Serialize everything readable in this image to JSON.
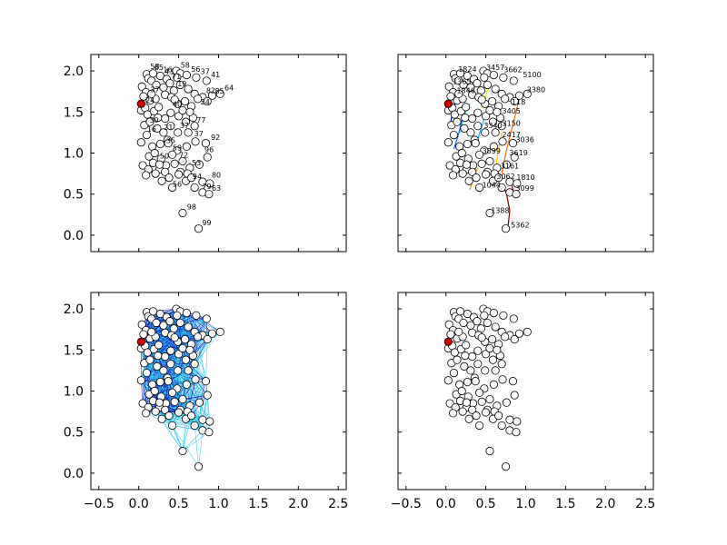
{
  "chart_data": {
    "type": "scatter",
    "xlim": [
      -0.6,
      2.6
    ],
    "ylim": [
      -0.2,
      2.2
    ],
    "x_ticks": [
      "−0.5",
      "0.0",
      "0.5",
      "1.0",
      "1.5",
      "2.0",
      "2.5"
    ],
    "x_tick_values": [
      -0.5,
      0.0,
      0.5,
      1.0,
      1.5,
      2.0,
      2.5
    ],
    "y_ticks": [
      "0.0",
      "0.5",
      "1.0",
      "1.5",
      "2.0"
    ],
    "y_tick_values": [
      0.0,
      0.5,
      1.0,
      1.5,
      2.0
    ],
    "grid": false,
    "colors": {
      "point_fill": "#ffffff",
      "point_edge": "#000000",
      "highlight": "#d40000",
      "edge_dark": "#1010c8",
      "edge_light": "#2ec8ee"
    },
    "highlight_point": {
      "x": 0.03,
      "y": 1.6
    },
    "points": [
      [
        0.1,
        1.96
      ],
      [
        0.12,
        1.91
      ],
      [
        0.18,
        1.97
      ],
      [
        0.27,
        1.94
      ],
      [
        0.35,
        1.9
      ],
      [
        0.47,
        2.0
      ],
      [
        0.52,
        1.97
      ],
      [
        0.6,
        1.95
      ],
      [
        0.72,
        1.92
      ],
      [
        0.85,
        1.88
      ],
      [
        0.04,
        1.81
      ],
      [
        0.09,
        1.74
      ],
      [
        0.16,
        1.88
      ],
      [
        0.22,
        1.83
      ],
      [
        0.31,
        1.8
      ],
      [
        0.39,
        1.85
      ],
      [
        0.44,
        1.76
      ],
      [
        0.52,
        1.83
      ],
      [
        0.62,
        1.78
      ],
      [
        0.7,
        1.72
      ],
      [
        0.8,
        1.68
      ],
      [
        0.92,
        1.7
      ],
      [
        1.02,
        1.72
      ],
      [
        0.06,
        1.69
      ],
      [
        0.14,
        1.64
      ],
      [
        0.21,
        1.66
      ],
      [
        0.33,
        1.71
      ],
      [
        0.41,
        1.68
      ],
      [
        0.49,
        1.6
      ],
      [
        0.58,
        1.63
      ],
      [
        0.66,
        1.57
      ],
      [
        0.74,
        1.66
      ],
      [
        0.86,
        1.63
      ],
      [
        0.03,
        1.52
      ],
      [
        0.08,
        1.55
      ],
      [
        0.11,
        1.47
      ],
      [
        0.19,
        1.51
      ],
      [
        0.25,
        1.56
      ],
      [
        0.33,
        1.42
      ],
      [
        0.4,
        1.49
      ],
      [
        0.5,
        1.45
      ],
      [
        0.59,
        1.38
      ],
      [
        0.68,
        1.43
      ],
      [
        0.07,
        1.34
      ],
      [
        0.14,
        1.38
      ],
      [
        0.23,
        1.3
      ],
      [
        0.31,
        1.25
      ],
      [
        0.4,
        1.33
      ],
      [
        0.49,
        1.25
      ],
      [
        0.62,
        1.25
      ],
      [
        0.7,
        1.33
      ],
      [
        0.03,
        1.13
      ],
      [
        0.1,
        1.22
      ],
      [
        0.17,
        1.08
      ],
      [
        0.27,
        1.11
      ],
      [
        0.36,
        1.16
      ],
      [
        0.48,
        1.03
      ],
      [
        0.6,
        1.08
      ],
      [
        0.71,
        1.14
      ],
      [
        0.84,
        1.12
      ],
      [
        0.13,
        0.96
      ],
      [
        0.2,
        1.0
      ],
      [
        0.28,
        0.93
      ],
      [
        0.34,
        0.85
      ],
      [
        0.42,
        0.98
      ],
      [
        0.55,
        0.9
      ],
      [
        0.64,
        0.82
      ],
      [
        0.76,
        0.86
      ],
      [
        0.86,
        0.95
      ],
      [
        0.05,
        0.85
      ],
      [
        0.12,
        0.8
      ],
      [
        0.18,
        0.88
      ],
      [
        0.26,
        0.8
      ],
      [
        0.33,
        0.77
      ],
      [
        0.45,
        0.87
      ],
      [
        0.52,
        0.77
      ],
      [
        0.61,
        0.75
      ],
      [
        0.09,
        0.73
      ],
      [
        0.21,
        0.75
      ],
      [
        0.29,
        0.66
      ],
      [
        0.38,
        0.7
      ],
      [
        0.42,
        0.58
      ],
      [
        0.5,
        0.74
      ],
      [
        0.59,
        0.66
      ],
      [
        0.66,
        0.7
      ],
      [
        0.8,
        0.65
      ],
      [
        0.89,
        0.63
      ],
      [
        0.7,
        0.58
      ],
      [
        0.8,
        0.52
      ],
      [
        0.88,
        0.5
      ],
      [
        0.55,
        0.27
      ],
      [
        0.75,
        0.08
      ],
      [
        0.26,
        0.86
      ],
      [
        0.45,
        1.65
      ],
      [
        0.55,
        1.52
      ],
      [
        0.64,
        1.5
      ],
      [
        0.16,
        1.72
      ],
      [
        0.48,
        1.92
      ],
      [
        0.37,
        1.12
      ],
      [
        0.24,
        1.43
      ]
    ],
    "point_labels": [
      {
        "t": "58",
        "x": 0.11,
        "y": 2.0
      },
      {
        "t": "65",
        "x": 0.16,
        "y": 1.99
      },
      {
        "t": "16",
        "x": 0.27,
        "y": 1.96
      },
      {
        "t": "43",
        "x": 0.29,
        "y": 1.94
      },
      {
        "t": "58",
        "x": 0.49,
        "y": 2.02
      },
      {
        "t": "56",
        "x": 0.62,
        "y": 1.97
      },
      {
        "t": "37",
        "x": 0.74,
        "y": 1.94
      },
      {
        "t": "41",
        "x": 0.87,
        "y": 1.9
      },
      {
        "t": "71",
        "x": 0.38,
        "y": 1.88
      },
      {
        "t": "19",
        "x": 0.45,
        "y": 1.79
      },
      {
        "t": "64",
        "x": 1.04,
        "y": 1.74
      },
      {
        "t": "82",
        "x": 0.81,
        "y": 1.71
      },
      {
        "t": "85",
        "x": 0.92,
        "y": 1.7
      },
      {
        "t": "37",
        "x": 0.11,
        "y": 1.72
      },
      {
        "t": "24",
        "x": 0.05,
        "y": 1.59
      },
      {
        "t": "40",
        "x": 0.39,
        "y": 1.54
      },
      {
        "t": "24",
        "x": 0.74,
        "y": 1.57
      },
      {
        "t": "77",
        "x": 0.69,
        "y": 1.35
      },
      {
        "t": "30",
        "x": 0.1,
        "y": 1.35
      },
      {
        "t": "21",
        "x": 0.28,
        "y": 1.26
      },
      {
        "t": "16",
        "x": 0.07,
        "y": 1.24
      },
      {
        "t": "37",
        "x": 0.48,
        "y": 1.28
      },
      {
        "t": "37",
        "x": 0.66,
        "y": 1.18
      },
      {
        "t": "92",
        "x": 0.87,
        "y": 1.14
      },
      {
        "t": "35",
        "x": 0.31,
        "y": 1.1
      },
      {
        "t": "59",
        "x": 0.39,
        "y": 1.01
      },
      {
        "t": "72",
        "x": 0.47,
        "y": 0.92
      },
      {
        "t": "96",
        "x": 0.79,
        "y": 0.99
      },
      {
        "t": "50",
        "x": 0.23,
        "y": 0.91
      },
      {
        "t": "53",
        "x": 0.63,
        "y": 0.83
      },
      {
        "t": "94",
        "x": 0.64,
        "y": 0.66
      },
      {
        "t": "80",
        "x": 0.88,
        "y": 0.68
      },
      {
        "t": "56",
        "x": 0.39,
        "y": 0.57
      },
      {
        "t": "79",
        "x": 0.76,
        "y": 0.54
      },
      {
        "t": "63",
        "x": 0.88,
        "y": 0.52
      },
      {
        "t": "98",
        "x": 0.57,
        "y": 0.29
      },
      {
        "t": "99",
        "x": 0.76,
        "y": 0.1
      }
    ],
    "panel_tr_labels": [
      {
        "t": "1824",
        "x": 0.12,
        "y": 1.97
      },
      {
        "t": "3457",
        "x": 0.47,
        "y": 1.99
      },
      {
        "t": "3662",
        "x": 0.69,
        "y": 1.96
      },
      {
        "t": "5100",
        "x": 0.93,
        "y": 1.9
      },
      {
        "t": "1365",
        "x": 0.05,
        "y": 1.82
      },
      {
        "t": "3380",
        "x": 0.98,
        "y": 1.72
      },
      {
        "t": "1846",
        "x": 0.1,
        "y": 1.71
      },
      {
        "t": "118",
        "x": 0.79,
        "y": 1.57
      },
      {
        "t": "3405",
        "x": 0.67,
        "y": 1.46
      },
      {
        "t": "3150",
        "x": 0.67,
        "y": 1.31
      },
      {
        "t": "3340",
        "x": 0.44,
        "y": 1.28
      },
      {
        "t": "2417",
        "x": 0.67,
        "y": 1.17
      },
      {
        "t": "3036",
        "x": 0.84,
        "y": 1.11
      },
      {
        "t": "3899",
        "x": 0.42,
        "y": 0.97
      },
      {
        "t": "3619",
        "x": 0.76,
        "y": 0.95
      },
      {
        "t": "3161",
        "x": 0.65,
        "y": 0.79
      },
      {
        "t": "1810",
        "x": 0.85,
        "y": 0.65
      },
      {
        "t": "1044",
        "x": 0.42,
        "y": 0.56
      },
      {
        "t": "3099",
        "x": 0.84,
        "y": 0.52
      },
      {
        "t": "3062",
        "x": 0.6,
        "y": 0.66
      },
      {
        "t": "1388",
        "x": 0.53,
        "y": 0.25
      },
      {
        "t": "5362",
        "x": 0.78,
        "y": 0.07
      }
    ],
    "trajectories": [
      {
        "color": "#7a0000",
        "pts": [
          [
            0.78,
            0.12
          ],
          [
            0.8,
            0.3
          ],
          [
            0.76,
            0.5
          ],
          [
            0.72,
            0.6
          ],
          [
            0.68,
            0.55
          ]
        ]
      },
      {
        "color": "#c80000",
        "pts": [
          [
            0.86,
            0.48
          ],
          [
            0.84,
            0.55
          ],
          [
            0.82,
            0.63
          ]
        ]
      },
      {
        "color": "#ff6a00",
        "pts": [
          [
            0.7,
            0.75
          ],
          [
            0.74,
            0.95
          ],
          [
            0.8,
            1.2
          ],
          [
            0.88,
            1.5
          ],
          [
            0.93,
            1.72
          ]
        ]
      },
      {
        "color": "#ffd000",
        "pts": [
          [
            0.62,
            0.8
          ],
          [
            0.66,
            1.05
          ],
          [
            0.7,
            1.25
          ]
        ]
      },
      {
        "color": "#f0f000",
        "pts": [
          [
            0.45,
            1.55
          ],
          [
            0.5,
            1.7
          ],
          [
            0.55,
            1.85
          ]
        ]
      },
      {
        "color": "#26d0c8",
        "pts": [
          [
            0.18,
            1.25
          ],
          [
            0.22,
            1.45
          ],
          [
            0.3,
            1.6
          ]
        ]
      },
      {
        "color": "#1a60ff",
        "pts": [
          [
            0.1,
            1.05
          ],
          [
            0.15,
            1.2
          ],
          [
            0.2,
            1.4
          ]
        ]
      },
      {
        "color": "#00b0ff",
        "pts": [
          [
            0.38,
            1.1
          ],
          [
            0.44,
            1.3
          ],
          [
            0.5,
            1.48
          ]
        ]
      },
      {
        "color": "#ff9000",
        "pts": [
          [
            0.3,
            0.55
          ],
          [
            0.34,
            0.7
          ],
          [
            0.4,
            0.82
          ]
        ]
      },
      {
        "color": "#0000b0",
        "pts": [
          [
            0.05,
            1.3
          ],
          [
            0.08,
            1.5
          ],
          [
            0.12,
            1.62
          ]
        ]
      }
    ],
    "panels": [
      {
        "id": "top-left",
        "variant": "labels",
        "show_xticks": false,
        "show_yticks": true
      },
      {
        "id": "top-right",
        "variant": "trajectories",
        "show_xticks": false,
        "show_yticks": false
      },
      {
        "id": "bottom-left",
        "variant": "network",
        "show_xticks": true,
        "show_yticks": true
      },
      {
        "id": "bottom-right",
        "variant": "plain",
        "show_xticks": true,
        "show_yticks": false
      }
    ]
  }
}
